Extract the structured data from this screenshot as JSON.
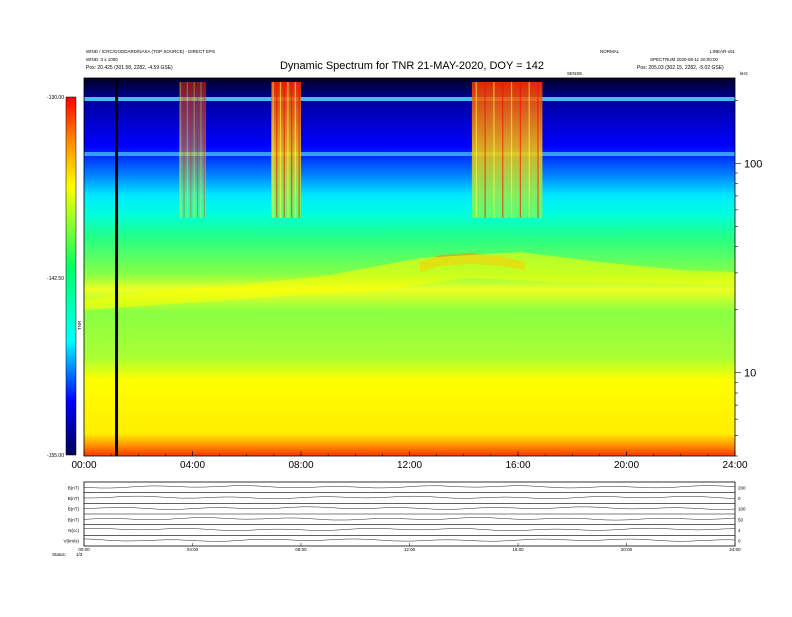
{
  "header": {
    "title": "Dynamic Spectrum for TNR 21-MAY-2020, DOY = 142",
    "left_line1": "WIND / ICRC/GODDARD/NASA (TOP SOURCE) - DIRECT EPS",
    "left_line2": "WIND: 3 x 1000",
    "left_line3": "Pos:  20.425 (301.58, 2282, -4.59 GSE)",
    "right_line1": "NORMAL",
    "right_line2": "LINEAR-x01",
    "right_line3": "SPECTRUM 2020-05-11 20:00:00",
    "right_line4": "Pos:  205.03 (302.15, 2282, -5.02 GSE)",
    "marker_label": "SENSE",
    "corner_label": "kHz"
  },
  "colorbar": {
    "label": "TNR",
    "tick_labels": [
      "-130.00",
      "-142.50",
      "-155.00"
    ],
    "colors": [
      "#000000",
      "#0000ff",
      "#00ffff",
      "#00ff66",
      "#ffff00",
      "#ff8800",
      "#ff0000"
    ]
  },
  "chart_data": {
    "type": "heatmap",
    "title": "Dynamic Spectrum for TNR 21-MAY-2020, DOY = 142",
    "x_tick_labels": [
      "00:00",
      "04:00",
      "08:00",
      "12:00",
      "16:00",
      "20:00",
      "24:00"
    ],
    "x_range_hours": [
      0,
      24
    ],
    "y_scale": "log",
    "y_unit": "kHz",
    "y_tick_labels": [
      "100",
      "10"
    ],
    "y_range_khz": [
      4,
      256
    ],
    "color_range": [
      -155.0,
      -130.0
    ],
    "bursts": [
      {
        "start_hour": 3.5,
        "end_hour": 4.5,
        "intensity": "moderate"
      },
      {
        "start_hour": 6.9,
        "end_hour": 8.0,
        "intensity": "strong"
      },
      {
        "start_hour": 14.3,
        "end_hour": 16.9,
        "intensity": "strong"
      }
    ],
    "data_gap_hour": 1.2,
    "enhanced_band_hours": [
      12.5,
      16.5
    ]
  },
  "panels": {
    "labels": [
      "B(nT)",
      "B(nT)",
      "B(nT)",
      "B(nT)",
      "N(cc)",
      "V(km/s)"
    ],
    "right_labels": [
      "200",
      "0",
      "100",
      "50",
      "4",
      "0"
    ],
    "x_tick_labels": [
      "00:00",
      "04:00",
      "08:00",
      "12:00",
      "16:00",
      "20:00",
      "24:00"
    ],
    "status_label": "Status:",
    "status_value": "1/3"
  }
}
